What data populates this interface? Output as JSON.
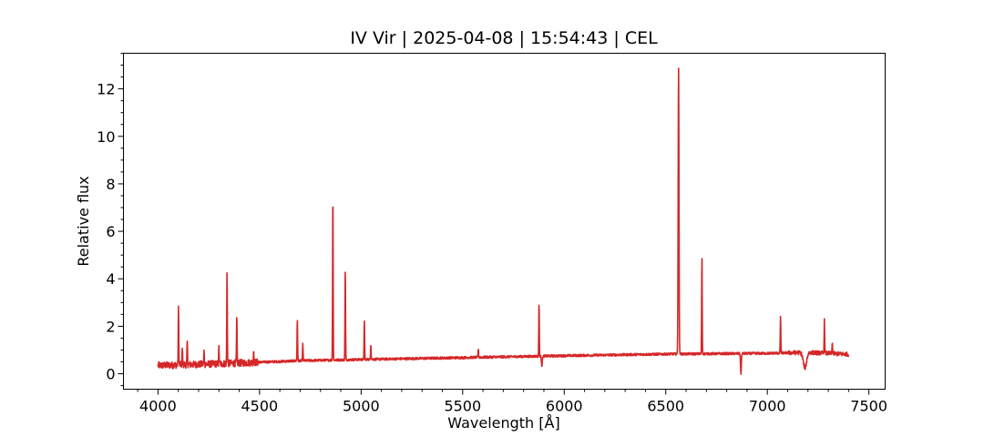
{
  "chart_data": {
    "type": "line",
    "title": "IV Vir | 2025-04-08 | 15:54:43 | CEL",
    "xlabel": "Wavelength [Å]",
    "ylabel": "Relative flux",
    "xlim": [
      3830,
      7580
    ],
    "ylim": [
      -0.65,
      13.5
    ],
    "xticks": [
      4000,
      4500,
      5000,
      5500,
      6000,
      6500,
      7000,
      7500
    ],
    "yticks": [
      0,
      2,
      4,
      6,
      8,
      10,
      12
    ],
    "x_minor_step": 100,
    "y_minor_step": 0.5,
    "grid": false,
    "series": [
      {
        "color": "#d62728",
        "x_range": [
          4000,
          7400
        ],
        "continuum": [
          [
            4000,
            0.35
          ],
          [
            4300,
            0.42
          ],
          [
            4700,
            0.55
          ],
          [
            5000,
            0.6
          ],
          [
            5500,
            0.68
          ],
          [
            6000,
            0.76
          ],
          [
            6500,
            0.83
          ],
          [
            7000,
            0.86
          ],
          [
            7200,
            0.9
          ],
          [
            7400,
            0.82
          ]
        ],
        "emission_lines": [
          [
            4101,
            2.75
          ],
          [
            4120,
            1.05
          ],
          [
            4144,
            1.35
          ],
          [
            4227,
            0.95
          ],
          [
            4300,
            1.1
          ],
          [
            4340,
            4.4
          ],
          [
            4388,
            2.35
          ],
          [
            4471,
            1.0
          ],
          [
            4686,
            2.35
          ],
          [
            4713,
            1.25
          ],
          [
            4861,
            7.75
          ],
          [
            4922,
            4.45
          ],
          [
            5016,
            2.25
          ],
          [
            5048,
            1.25
          ],
          [
            5577,
            1.05
          ],
          [
            5876,
            3.0
          ],
          [
            6563,
            12.9
          ],
          [
            6678,
            5.0
          ],
          [
            7065,
            2.45
          ],
          [
            7281,
            2.25
          ],
          [
            7320,
            1.3
          ]
        ],
        "absorption_features": [
          [
            5890,
            0.35
          ],
          [
            6870,
            -0.0
          ],
          [
            7185,
            0.25
          ]
        ]
      }
    ]
  }
}
